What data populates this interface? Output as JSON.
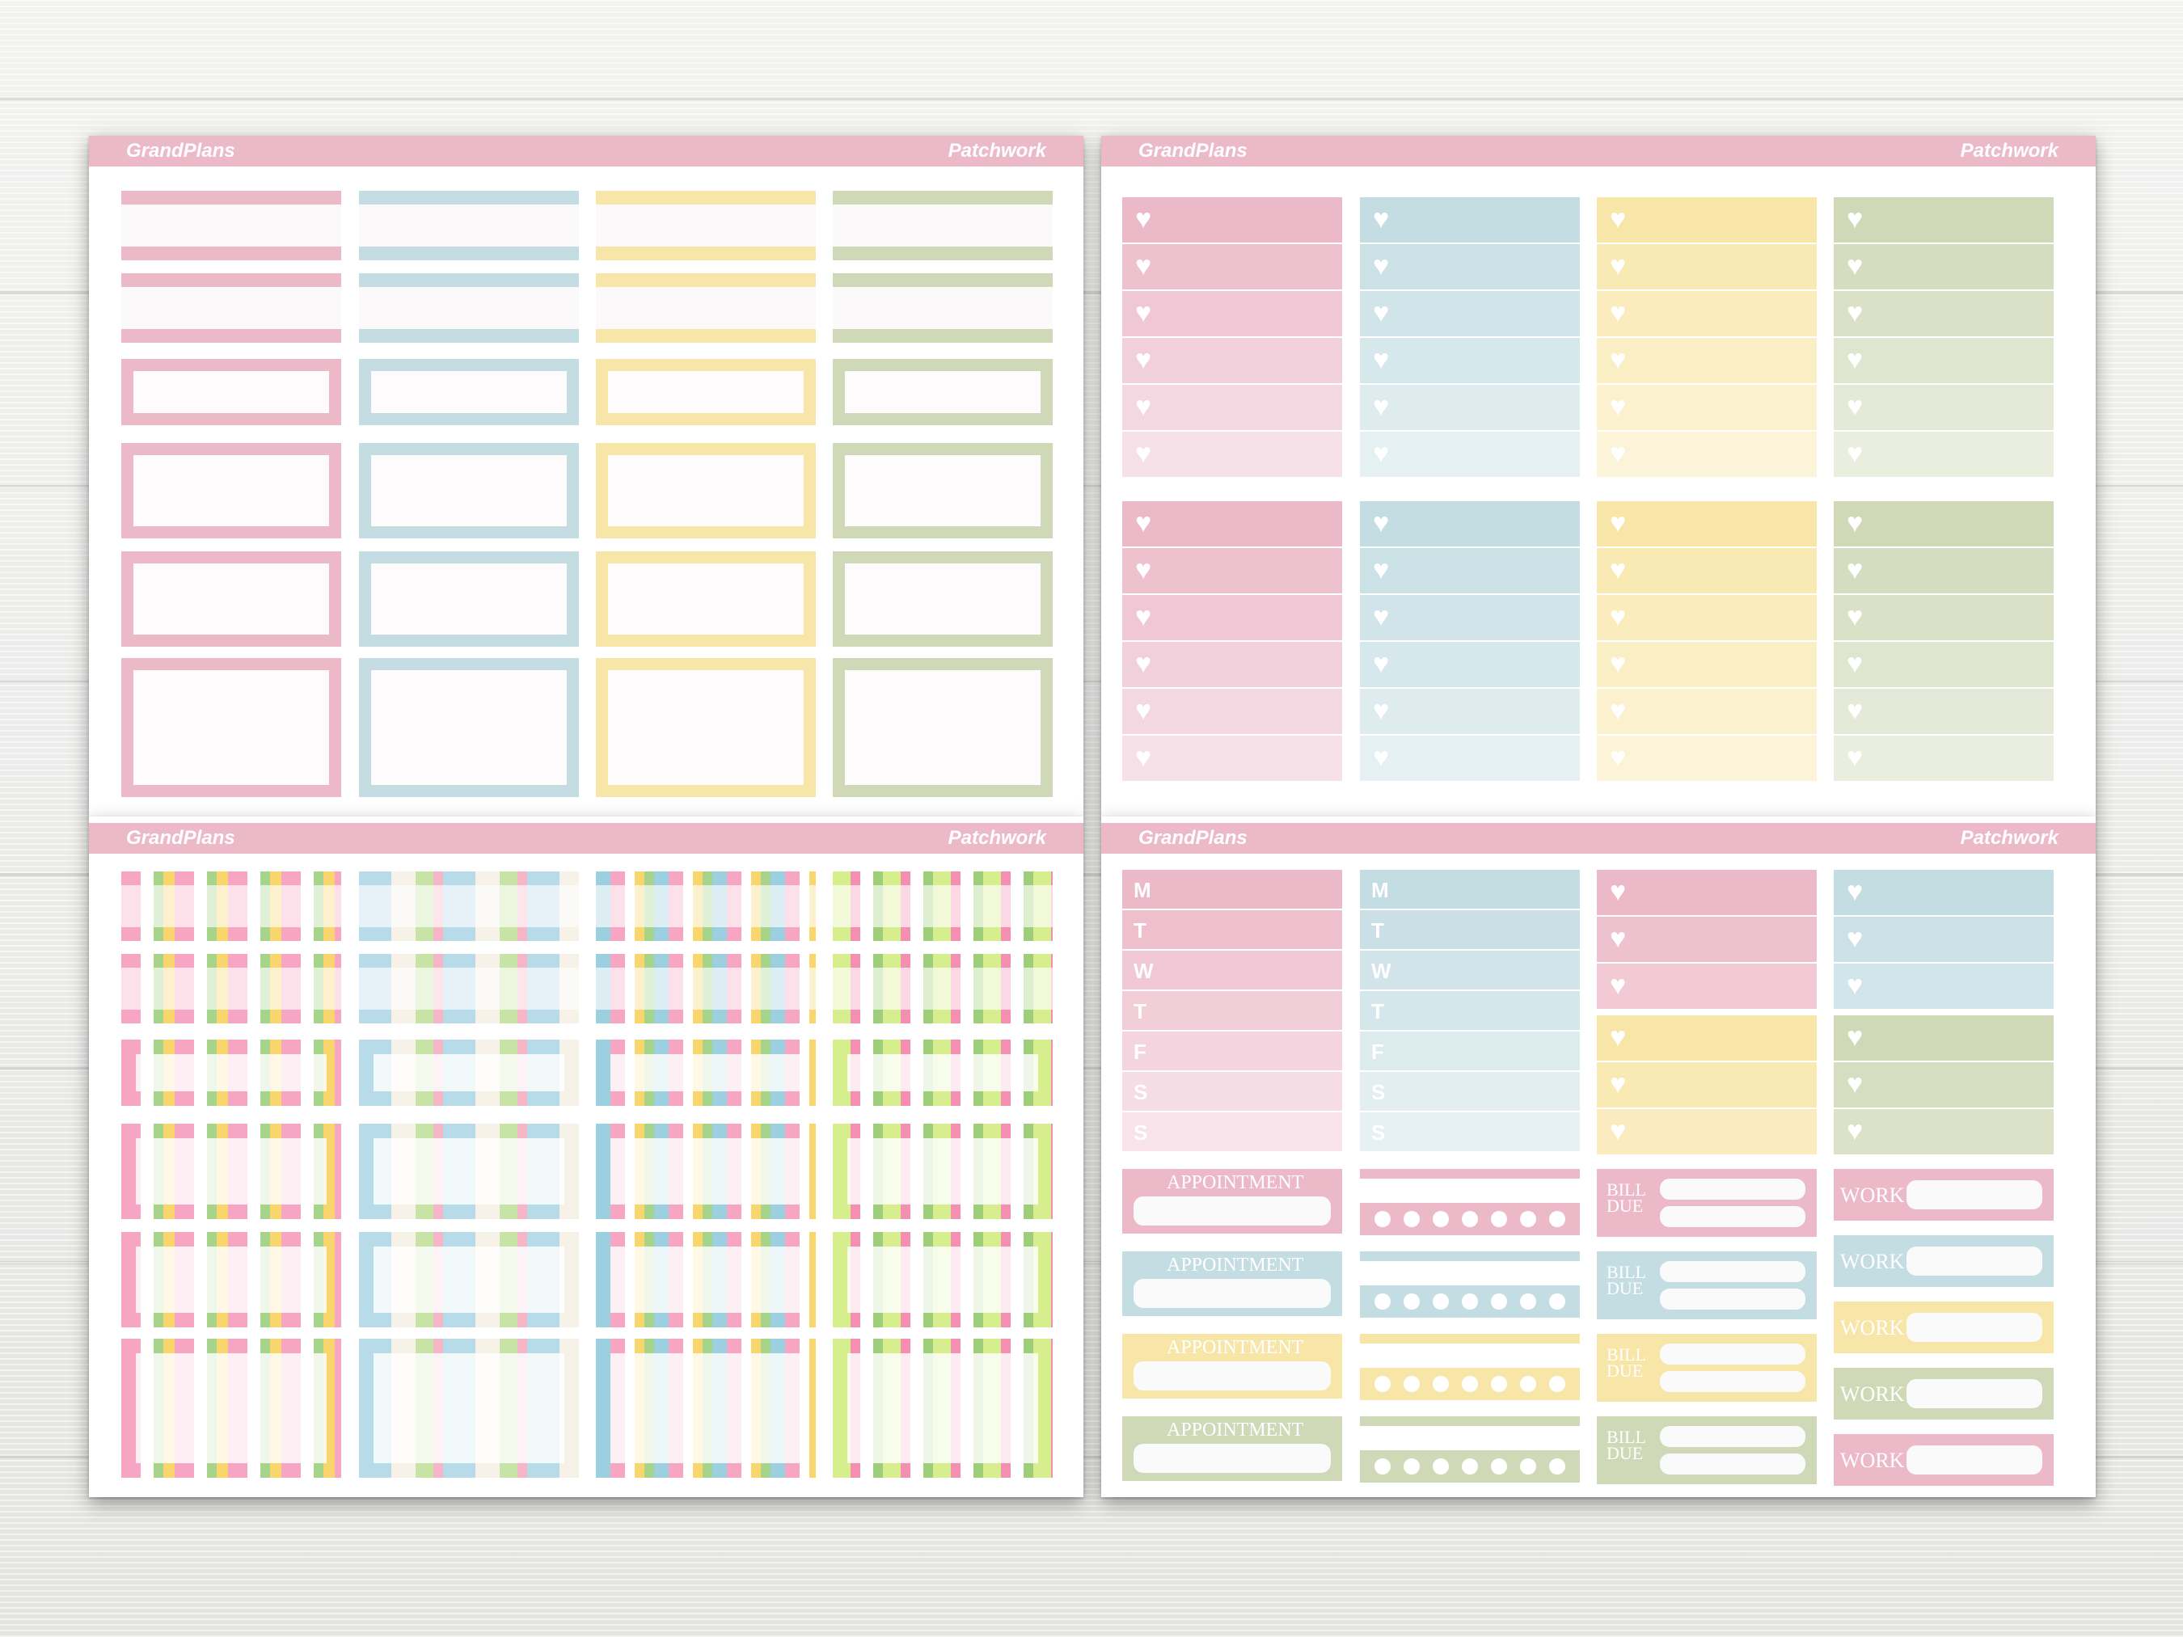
{
  "colors": {
    "pink": "#ecb9c9",
    "blue": "#c4dde3",
    "yellow": "#f8e6a9",
    "green": "#cfd9b7",
    "header": "#ecb9c9"
  },
  "sheets": [
    {
      "brand": "GrandPlans",
      "theme": "Patchwork"
    },
    {
      "brand": "GrandPlans",
      "theme": "Patchwork"
    },
    {
      "brand": "GrandPlans",
      "theme": "Patchwork"
    },
    {
      "brand": "GrandPlans",
      "theme": "Patchwork"
    }
  ],
  "day_letters": [
    "M",
    "T",
    "W",
    "T",
    "F",
    "S",
    "S"
  ],
  "labels": {
    "appointment": "APPOINTMENT",
    "bill_due": "BILL DUE",
    "work": "WORK"
  },
  "icons": {
    "heart": "heart-icon",
    "dot": "circle-icon"
  }
}
